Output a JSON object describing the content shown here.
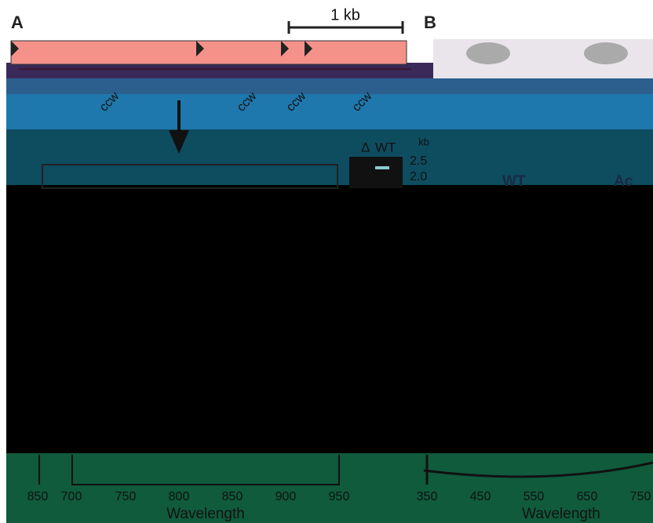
{
  "panels": {
    "a": {
      "label": "A",
      "scale_bar": "1 kb",
      "loop_labels": [
        "ccw",
        "ccw",
        "ccw",
        "ccw"
      ],
      "gel": {
        "lanes": [
          "Δ",
          "WT"
        ],
        "unit": "kb",
        "markers": [
          "2.5",
          "2.0"
        ]
      },
      "x_axis": {
        "ticks": [
          "850",
          "700",
          "750",
          "800",
          "850",
          "900",
          "950"
        ],
        "label": "Wavelength"
      }
    },
    "b": {
      "label": "B",
      "photo_labels": [
        "WT",
        "Ac"
      ],
      "x_axis": {
        "ticks": [
          "350",
          "450",
          "550",
          "650",
          "750"
        ],
        "label": "Wavelength"
      }
    }
  }
}
